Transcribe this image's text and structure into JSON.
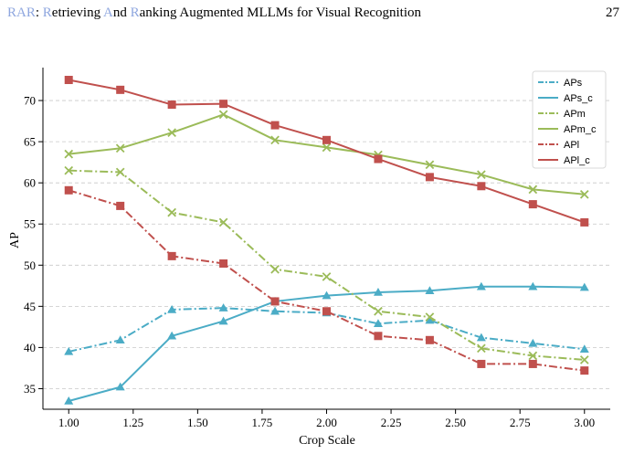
{
  "header": {
    "title_segments": [
      {
        "text": "RAR",
        "accent": true
      },
      {
        "text": ": ",
        "accent": false
      },
      {
        "text": "R",
        "accent": true
      },
      {
        "text": "etrieving ",
        "accent": false
      },
      {
        "text": "A",
        "accent": true
      },
      {
        "text": "nd ",
        "accent": false
      },
      {
        "text": "R",
        "accent": true
      },
      {
        "text": "anking Augmented MLLMs for Visual Recognition",
        "accent": false
      }
    ],
    "page_number": "27"
  },
  "chart_data": {
    "type": "line",
    "title": "",
    "xlabel": "Crop Scale",
    "ylabel": "AP",
    "x": [
      1.0,
      1.2,
      1.4,
      1.6,
      1.8,
      2.0,
      2.2,
      2.4,
      2.6,
      2.8,
      3.0
    ],
    "xlim": [
      0.9,
      3.1
    ],
    "ylim": [
      32.5,
      74.0
    ],
    "xticks": [
      "1.00",
      "1.25",
      "1.50",
      "1.75",
      "2.00",
      "2.25",
      "2.50",
      "2.75",
      "3.00"
    ],
    "xtick_values": [
      1.0,
      1.25,
      1.5,
      1.75,
      2.0,
      2.25,
      2.5,
      2.75,
      3.0
    ],
    "yticks": [
      "35",
      "40",
      "45",
      "50",
      "55",
      "60",
      "65",
      "70"
    ],
    "ytick_values": [
      35,
      40,
      45,
      50,
      55,
      60,
      65,
      70
    ],
    "grid": "horizontal-dashed",
    "legend_position": "top-right",
    "series": [
      {
        "name": "APs",
        "color": "#4bacc6",
        "dash": "dashdot",
        "marker": "triangle",
        "values": [
          39.5,
          40.9,
          44.6,
          44.8,
          44.4,
          44.2,
          42.9,
          43.3,
          41.2,
          40.5,
          39.8
        ]
      },
      {
        "name": "APs_c",
        "color": "#4bacc6",
        "dash": "solid",
        "marker": "triangle",
        "values": [
          33.5,
          35.2,
          41.4,
          43.2,
          45.6,
          46.3,
          46.7,
          46.9,
          47.4,
          47.4,
          47.3
        ]
      },
      {
        "name": "APm",
        "color": "#9bbb59",
        "dash": "dashdot",
        "marker": "x",
        "values": [
          61.5,
          61.3,
          56.4,
          55.2,
          49.5,
          48.6,
          44.4,
          43.7,
          39.9,
          39.0,
          38.5
        ]
      },
      {
        "name": "APm_c",
        "color": "#9bbb59",
        "dash": "solid",
        "marker": "x",
        "values": [
          63.5,
          64.2,
          66.1,
          68.3,
          65.2,
          64.3,
          63.4,
          62.2,
          61.0,
          59.2,
          58.6
        ]
      },
      {
        "name": "APl",
        "color": "#c0504d",
        "dash": "dashdot",
        "marker": "square",
        "values": [
          59.1,
          57.2,
          51.1,
          50.2,
          45.6,
          44.4,
          41.4,
          40.9,
          38.0,
          38.0,
          37.2
        ]
      },
      {
        "name": "APl_c",
        "color": "#c0504d",
        "dash": "solid",
        "marker": "square",
        "values": [
          72.5,
          71.3,
          69.5,
          69.6,
          67.0,
          65.2,
          62.9,
          60.7,
          59.6,
          57.4,
          55.2
        ]
      }
    ]
  }
}
